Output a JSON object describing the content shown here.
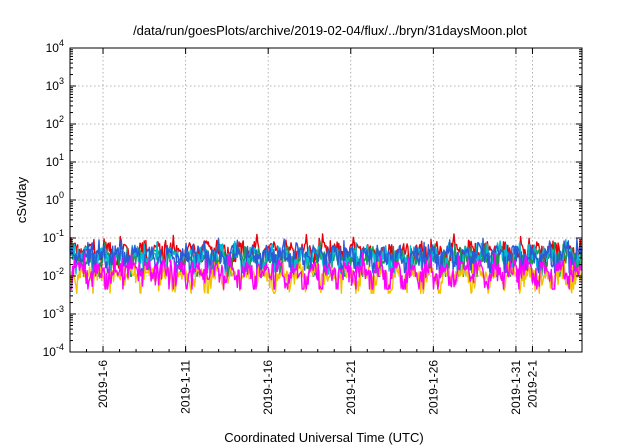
{
  "chart_data": {
    "type": "line",
    "title": "/data/run/goesPlots/archive/2019-02-04/flux/../bryn/31daysMoon.plot",
    "xlabel": "Coordinated Universal Time (UTC)",
    "ylabel": "cSv/day",
    "yscale": "log",
    "ylim": [
      0.0001,
      10000
    ],
    "xlim": [
      "2019-01-04",
      "2019-02-04"
    ],
    "grid": true,
    "y_ticks": [
      {
        "base": "10",
        "exp": "-4",
        "value": 0.0001
      },
      {
        "base": "10",
        "exp": "-3",
        "value": 0.001
      },
      {
        "base": "10",
        "exp": "-2",
        "value": 0.01
      },
      {
        "base": "10",
        "exp": "-1",
        "value": 0.1
      },
      {
        "base": "10",
        "exp": "0",
        "value": 1
      },
      {
        "base": "10",
        "exp": "1",
        "value": 10
      },
      {
        "base": "10",
        "exp": "2",
        "value": 100
      },
      {
        "base": "10",
        "exp": "3",
        "value": 1000
      },
      {
        "base": "10",
        "exp": "4",
        "value": 10000
      }
    ],
    "x_ticks": [
      {
        "label": "2019-1-6",
        "date": "2019-01-06"
      },
      {
        "label": "2019-1-11",
        "date": "2019-01-11"
      },
      {
        "label": "2019-1-16",
        "date": "2019-01-16"
      },
      {
        "label": "2019-1-21",
        "date": "2019-01-21"
      },
      {
        "label": "2019-1-26",
        "date": "2019-01-26"
      },
      {
        "label": "2019-1-31",
        "date": "2019-01-31"
      },
      {
        "label": "2019-2-1",
        "date": "2019-02-01"
      }
    ],
    "series": [
      {
        "color": "#e8000b",
        "base": 0.045,
        "amp": 0.03
      },
      {
        "color": "#1a9850",
        "base": 0.028,
        "amp": 0.02
      },
      {
        "color": "#00bcd4",
        "base": 0.032,
        "amp": 0.022
      },
      {
        "color": "#2a5bd7",
        "base": 0.035,
        "amp": 0.025
      },
      {
        "color": "#f2c200",
        "base": 0.01,
        "amp": 0.006
      },
      {
        "color": "#ff00ff",
        "base": 0.013,
        "amp": 0.01
      }
    ]
  }
}
